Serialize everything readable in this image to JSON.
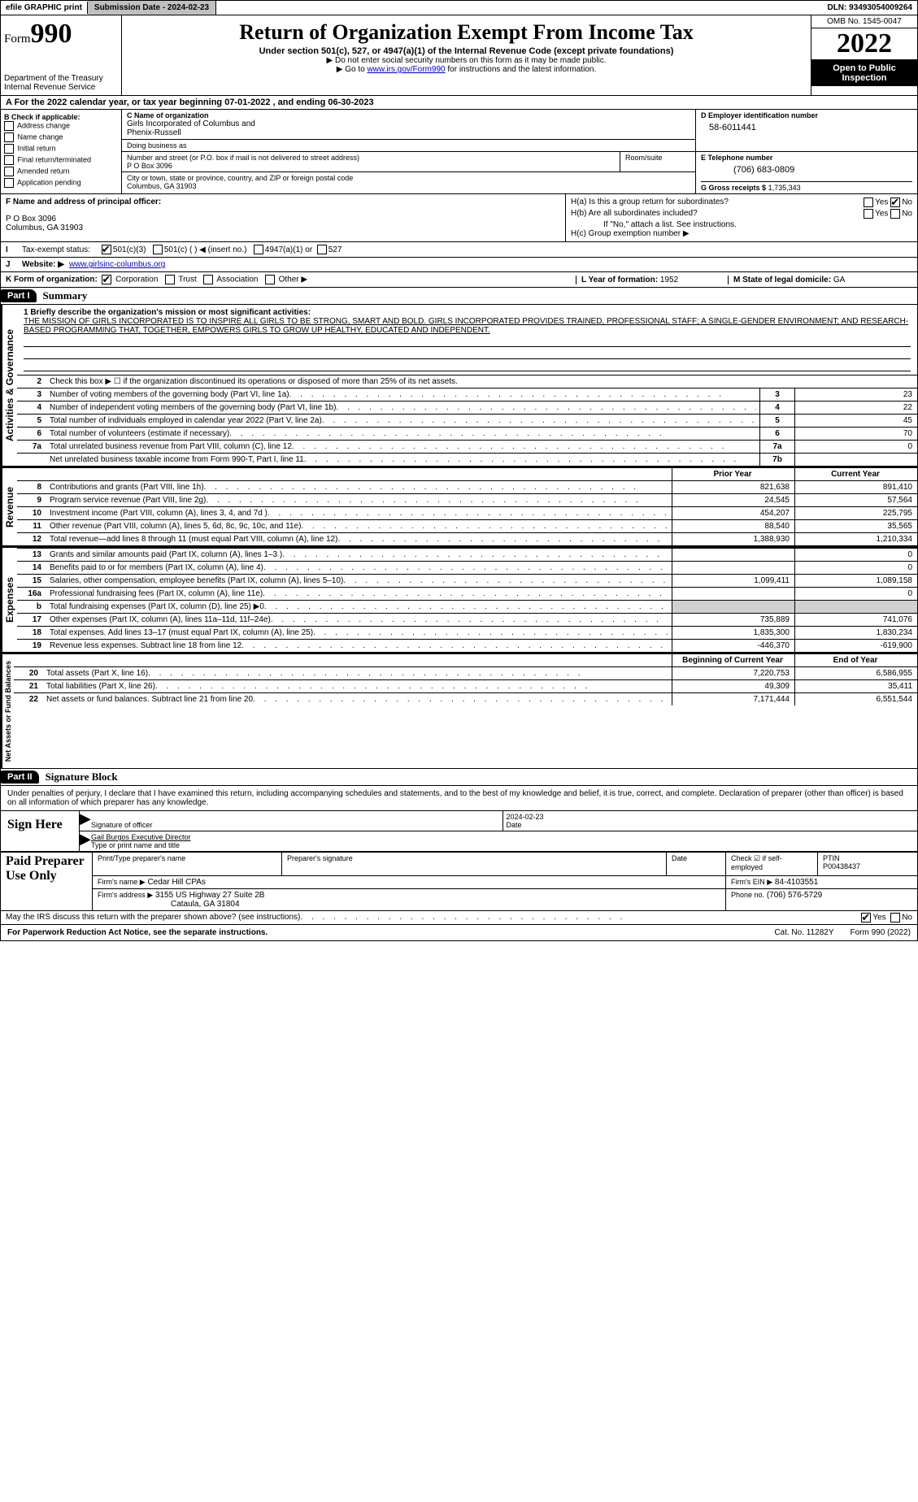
{
  "meta": {
    "efile": "efile GRAPHIC print",
    "submission_label": "Submission Date - 2024-02-23",
    "dln_label": "DLN: 93493054009264"
  },
  "header": {
    "form_label": "Form",
    "form_num": "990",
    "title": "Return of Organization Exempt From Income Tax",
    "subtitle": "Under section 501(c), 527, or 4947(a)(1) of the Internal Revenue Code (except private foundations)",
    "note1": "▶ Do not enter social security numbers on this form as it may be made public.",
    "note2_pre": "▶ Go to ",
    "note2_link": "www.irs.gov/Form990",
    "note2_post": " for instructions and the latest information.",
    "dept": "Department of the Treasury",
    "irs": "Internal Revenue Service",
    "omb": "OMB No. 1545-0047",
    "year": "2022",
    "open": "Open to Public Inspection"
  },
  "rowA": {
    "text": "A For the 2022 calendar year, or tax year beginning 07-01-2022    , and ending 06-30-2023"
  },
  "B": {
    "title": "B Check if applicable:",
    "opts": [
      "Address change",
      "Name change",
      "Initial return",
      "Final return/terminated",
      "Amended return",
      "Application pending"
    ]
  },
  "C": {
    "name_lbl": "C Name of organization",
    "name1": "Girls Incorporated of Columbus and",
    "name2": "Phenix-Russell",
    "dba_lbl": "Doing business as",
    "street_lbl": "Number and street (or P.O. box if mail is not delivered to street address)",
    "room_lbl": "Room/suite",
    "street": "P O Box 3096",
    "city_lbl": "City or town, state or province, country, and ZIP or foreign postal code",
    "city": "Columbus, GA  31903"
  },
  "D": {
    "lbl": "D Employer identification number",
    "val": "58-6011441"
  },
  "E": {
    "tel_lbl": "E Telephone number",
    "tel": "(706) 683-0809",
    "gross_lbl": "G Gross receipts $",
    "gross": "1,735,343"
  },
  "F": {
    "lbl": "F  Name and address of principal officer:",
    "line1": "P O Box 3096",
    "line2": "Columbus, GA  31903"
  },
  "H": {
    "a": "H(a)  Is this a group return for subordinates?",
    "b": "H(b)  Are all subordinates included?",
    "b_note": "If \"No,\" attach a list. See instructions.",
    "c": "H(c)  Group exemption number ▶"
  },
  "I": {
    "lbl": "Tax-exempt status:",
    "opts": [
      "501(c)(3)",
      "501(c) (   ) ◀ (insert no.)",
      "4947(a)(1) or",
      "527"
    ]
  },
  "J": {
    "lbl": "Website: ▶",
    "val": "www.girlsinc-columbus.org"
  },
  "K": {
    "lbl": "K Form of organization:",
    "opts": [
      "Corporation",
      "Trust",
      "Association",
      "Other ▶"
    ]
  },
  "L": {
    "lbl": "L Year of formation:",
    "val": "1952"
  },
  "M": {
    "lbl": "M State of legal domicile:",
    "val": "GA"
  },
  "partI": {
    "hdr": "Part I",
    "title": "Summary",
    "mission_q": "1  Briefly describe the organization's mission or most significant activities:",
    "mission": "THE MISSION OF GIRLS INCORPORATED IS TO INSPIRE ALL GIRLS TO BE STRONG, SMART AND BOLD. GIRLS INCORPORATED PROVIDES TRAINED, PROFESSIONAL STAFF; A SINGLE-GENDER ENVIRONMENT; AND RESEARCH-BASED PROGRAMMING THAT, TOGETHER, EMPOWERS GIRLS TO GROW UP HEALTHY, EDUCATED AND INDEPENDENT.",
    "line2": "Check this box ▶ ☐  if the organization discontinued its operations or disposed of more than 25% of its net assets."
  },
  "gov_rows": [
    {
      "n": "3",
      "desc": "Number of voting members of the governing body (Part VI, line 1a)",
      "box": "3",
      "v": "23"
    },
    {
      "n": "4",
      "desc": "Number of independent voting members of the governing body (Part VI, line 1b)",
      "box": "4",
      "v": "22"
    },
    {
      "n": "5",
      "desc": "Total number of individuals employed in calendar year 2022 (Part V, line 2a)",
      "box": "5",
      "v": "45"
    },
    {
      "n": "6",
      "desc": "Total number of volunteers (estimate if necessary)",
      "box": "6",
      "v": "70"
    },
    {
      "n": "7a",
      "desc": "Total unrelated business revenue from Part VIII, column (C), line 12",
      "box": "7a",
      "v": "0"
    },
    {
      "n": "",
      "desc": "Net unrelated business taxable income from Form 990-T, Part I, line 11",
      "box": "7b",
      "v": ""
    }
  ],
  "rev_hdr": {
    "prior": "Prior Year",
    "curr": "Current Year"
  },
  "rev_rows": [
    {
      "n": "8",
      "desc": "Contributions and grants (Part VIII, line 1h)",
      "p": "821,638",
      "c": "891,410"
    },
    {
      "n": "9",
      "desc": "Program service revenue (Part VIII, line 2g)",
      "p": "24,545",
      "c": "57,564"
    },
    {
      "n": "10",
      "desc": "Investment income (Part VIII, column (A), lines 3, 4, and 7d )",
      "p": "454,207",
      "c": "225,795"
    },
    {
      "n": "11",
      "desc": "Other revenue (Part VIII, column (A), lines 5, 6d, 8c, 9c, 10c, and 11e)",
      "p": "88,540",
      "c": "35,565"
    },
    {
      "n": "12",
      "desc": "Total revenue—add lines 8 through 11 (must equal Part VIII, column (A), line 12)",
      "p": "1,388,930",
      "c": "1,210,334"
    }
  ],
  "exp_rows": [
    {
      "n": "13",
      "desc": "Grants and similar amounts paid (Part IX, column (A), lines 1–3 )",
      "p": "",
      "c": "0"
    },
    {
      "n": "14",
      "desc": "Benefits paid to or for members (Part IX, column (A), line 4)",
      "p": "",
      "c": "0"
    },
    {
      "n": "15",
      "desc": "Salaries, other compensation, employee benefits (Part IX, column (A), lines 5–10)",
      "p": "1,099,411",
      "c": "1,089,158"
    },
    {
      "n": "16a",
      "desc": "Professional fundraising fees (Part IX, column (A), line 11e)",
      "p": "",
      "c": "0"
    },
    {
      "n": "b",
      "desc": "Total fundraising expenses (Part IX, column (D), line 25) ▶0",
      "p": "",
      "c": "",
      "shade": true
    },
    {
      "n": "17",
      "desc": "Other expenses (Part IX, column (A), lines 11a–11d, 11f–24e)",
      "p": "735,889",
      "c": "741,076"
    },
    {
      "n": "18",
      "desc": "Total expenses. Add lines 13–17 (must equal Part IX, column (A), line 25)",
      "p": "1,835,300",
      "c": "1,830,234"
    },
    {
      "n": "19",
      "desc": "Revenue less expenses. Subtract line 18 from line 12",
      "p": "-446,370",
      "c": "-619,900"
    }
  ],
  "net_hdr": {
    "prior": "Beginning of Current Year",
    "curr": "End of Year"
  },
  "net_rows": [
    {
      "n": "20",
      "desc": "Total assets (Part X, line 16)",
      "p": "7,220,753",
      "c": "6,586,955"
    },
    {
      "n": "21",
      "desc": "Total liabilities (Part X, line 26)",
      "p": "49,309",
      "c": "35,411"
    },
    {
      "n": "22",
      "desc": "Net assets or fund balances. Subtract line 21 from line 20",
      "p": "7,171,444",
      "c": "6,551,544"
    }
  ],
  "partII": {
    "hdr": "Part II",
    "title": "Signature Block",
    "intro": "Under penalties of perjury, I declare that I have examined this return, including accompanying schedules and statements, and to the best of my knowledge and belief, it is true, correct, and complete. Declaration of preparer (other than officer) is based on all information of which preparer has any knowledge."
  },
  "sign": {
    "here": "Sign Here",
    "sig_lbl": "Signature of officer",
    "date_lbl": "Date",
    "date": "2024-02-23",
    "name": "Gail Burgos  Executive Director",
    "name_lbl": "Type or print name and title"
  },
  "prep": {
    "lbl": "Paid Preparer Use Only",
    "print_lbl": "Print/Type preparer's name",
    "sig_lbl": "Preparer's signature",
    "date_lbl": "Date",
    "self_lbl": "Check ☑ if self-employed",
    "ptin_lbl": "PTIN",
    "ptin": "P00438437",
    "firm_name_lbl": "Firm's name    ▶",
    "firm_name": "Cedar Hill CPAs",
    "firm_ein_lbl": "Firm's EIN ▶",
    "firm_ein": "84-4103551",
    "firm_addr_lbl": "Firm's address ▶",
    "firm_addr1": "3155 US Highway 27 Suite 2B",
    "firm_addr2": "Cataula, GA  31804",
    "phone_lbl": "Phone no.",
    "phone": "(706) 576-5729"
  },
  "may": "May the IRS discuss this return with the preparer shown above? (see instructions)",
  "foot": {
    "left": "For Paperwork Reduction Act Notice, see the separate instructions.",
    "mid": "Cat. No. 11282Y",
    "right": "Form 990 (2022)"
  },
  "vtabs": {
    "gov": "Activities & Governance",
    "rev": "Revenue",
    "exp": "Expenses",
    "net": "Net Assets or Fund Balances"
  }
}
